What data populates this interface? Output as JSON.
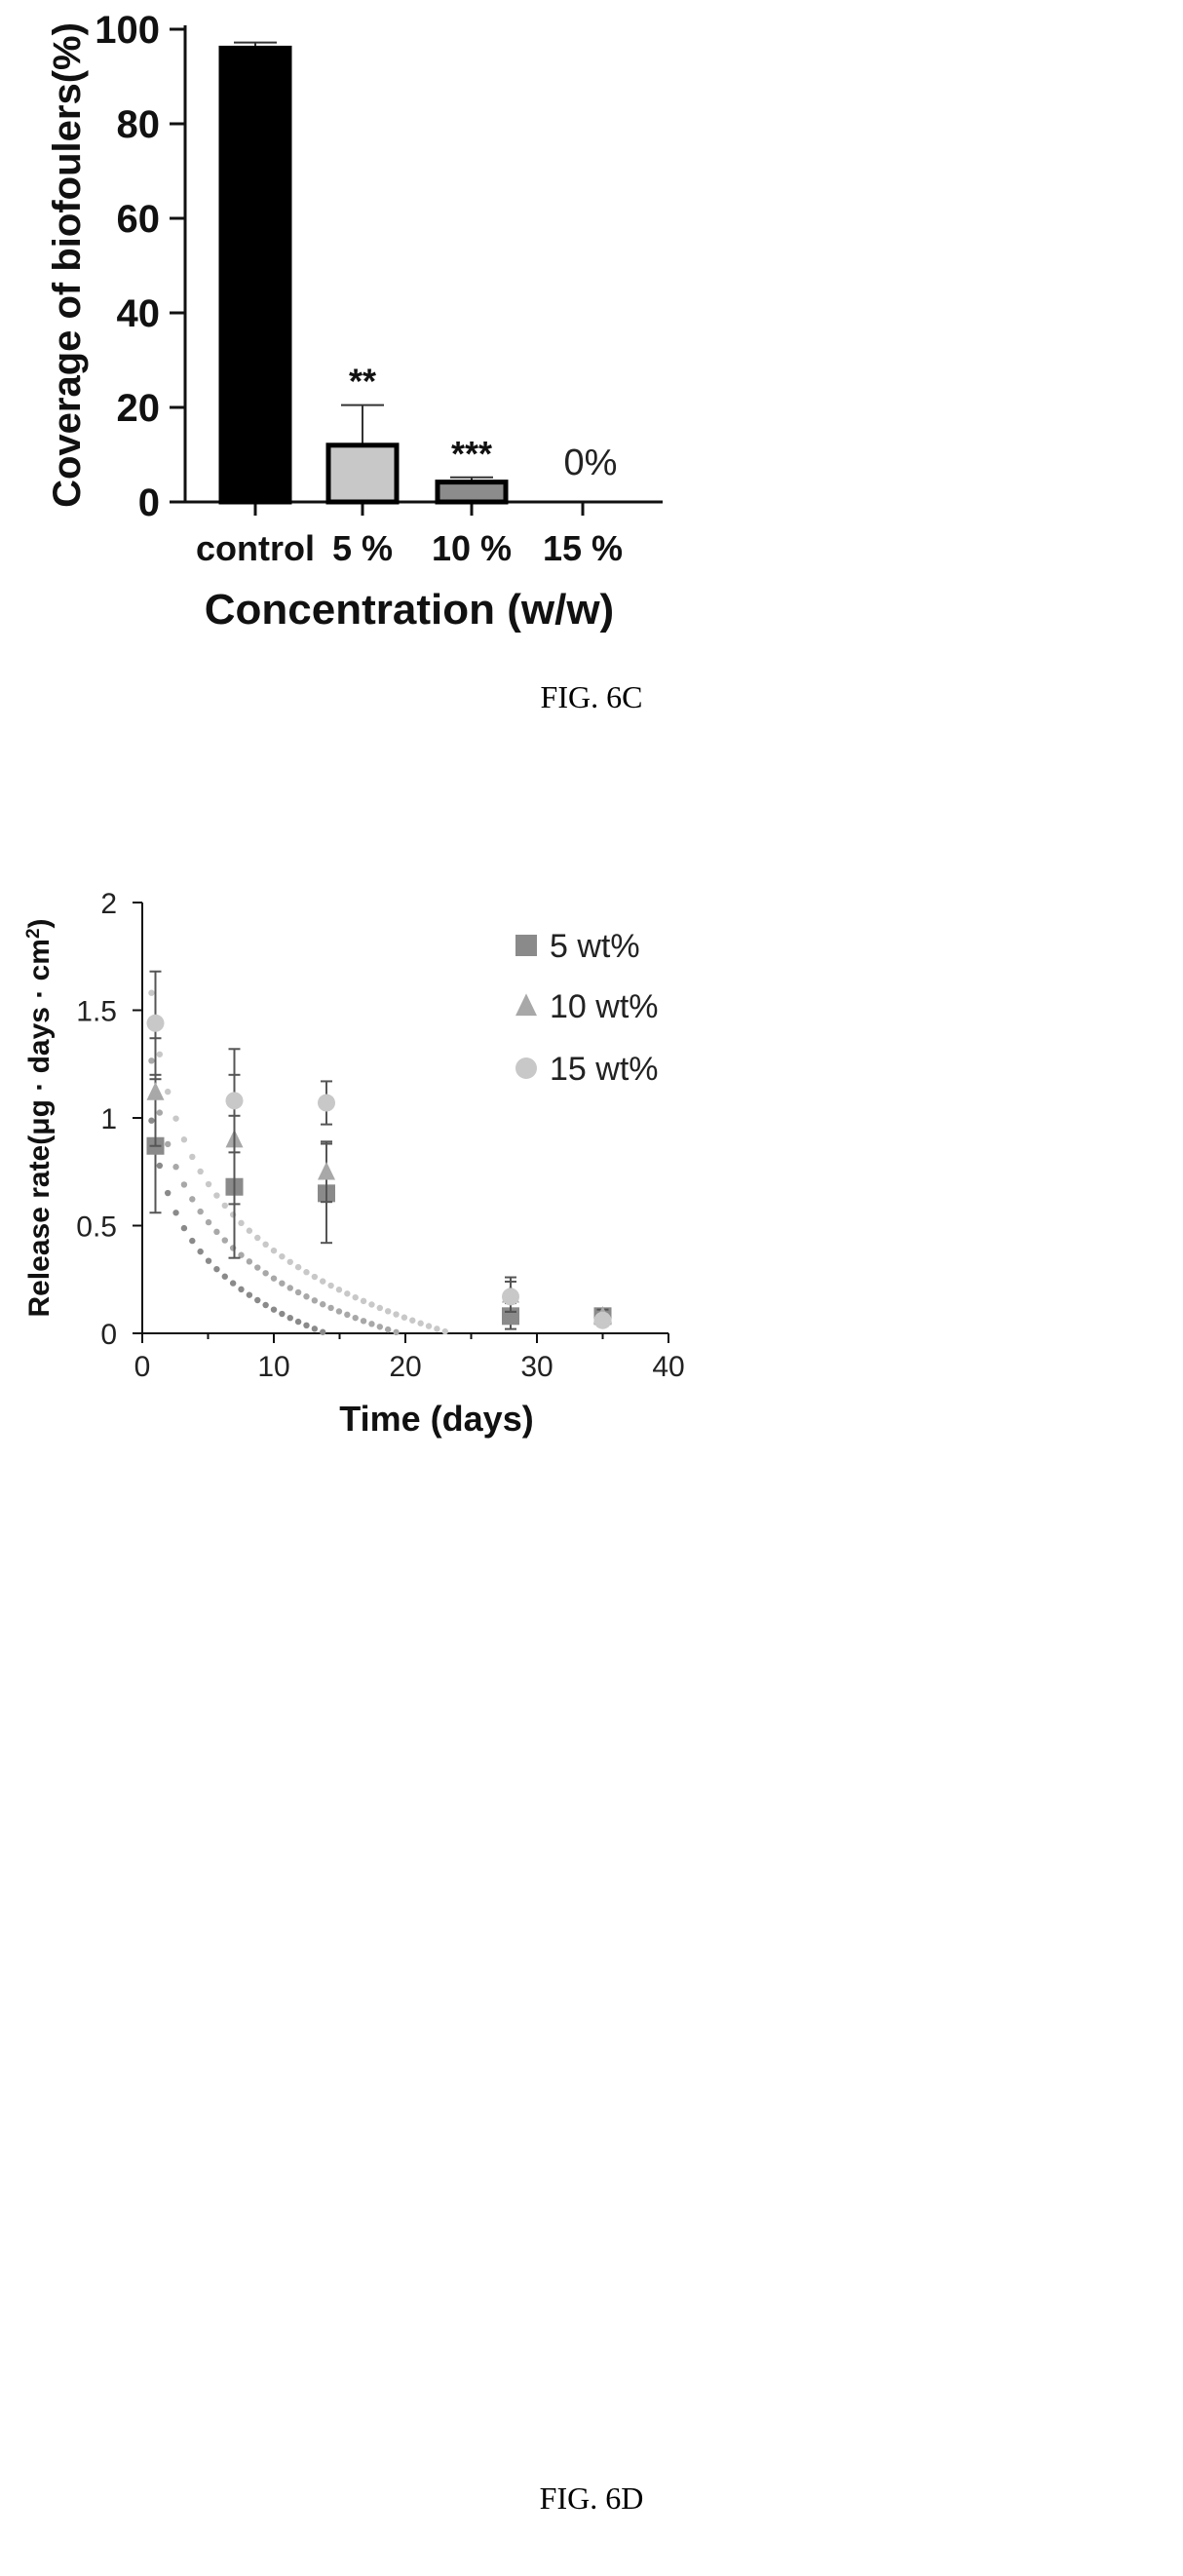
{
  "chart_data": [
    {
      "type": "bar",
      "caption": "FIG. 6C",
      "categories": [
        "control",
        "5 %",
        "10 %",
        "15 %"
      ],
      "values": [
        96,
        12,
        4.2,
        0
      ],
      "errors": [
        1.2,
        8.5,
        1.0,
        0
      ],
      "colors": [
        "#000000",
        "#c8c8c8",
        "#8c8c8c",
        "#ffffff"
      ],
      "annotations": [
        "",
        "**",
        "***",
        "0%"
      ],
      "ylabel": "Coverage of biofoulers(%)",
      "xlabel": "Concentration (w/w)",
      "ylim": [
        0,
        100
      ],
      "yticks": [
        0,
        20,
        40,
        60,
        80,
        100
      ],
      "grid": false
    },
    {
      "type": "scatter",
      "caption": "FIG. 6D",
      "xlabel": "Time (days)",
      "ylabel": "Release rate(μg · days · cm",
      "ylabel_sup": "2",
      "ylabel_close": ")",
      "xlim": [
        0,
        40
      ],
      "ylim": [
        0,
        2
      ],
      "xticks": [
        0,
        10,
        20,
        30,
        40
      ],
      "yticks": [
        0,
        0.5,
        1,
        1.5,
        2
      ],
      "ytick_labels": [
        "0",
        "0.5",
        "1",
        "1.5",
        "2"
      ],
      "legend_position": "top-right",
      "grid": false,
      "series": [
        {
          "name": "5 wt%",
          "marker": "square",
          "color": "#8a8a8a",
          "x": [
            1,
            7,
            14,
            28,
            35
          ],
          "y": [
            0.87,
            0.68,
            0.65,
            0.08,
            0.08
          ],
          "err": [
            0.31,
            0.33,
            0.23,
            0.06,
            0.02
          ],
          "trend": {
            "a": 0.87,
            "b": -0.33
          }
        },
        {
          "name": "10 wt%",
          "marker": "triangle",
          "color": "#a8a8a8",
          "x": [
            1,
            7,
            14,
            28,
            35
          ],
          "y": [
            1.12,
            0.9,
            0.75,
            0.18,
            0.08
          ],
          "err": [
            0.25,
            0.3,
            0.14,
            0.08,
            0.03
          ],
          "trend": {
            "a": 1.13,
            "b": -0.38
          }
        },
        {
          "name": "15 wt%",
          "marker": "circle",
          "color": "#c8c8c8",
          "x": [
            1,
            7,
            14,
            28,
            35
          ],
          "y": [
            1.44,
            1.08,
            1.07,
            0.17,
            0.06
          ],
          "err": [
            0.24,
            0.24,
            0.1,
            0.07,
            0.02
          ],
          "trend": {
            "a": 1.42,
            "b": -0.45
          }
        }
      ]
    }
  ]
}
